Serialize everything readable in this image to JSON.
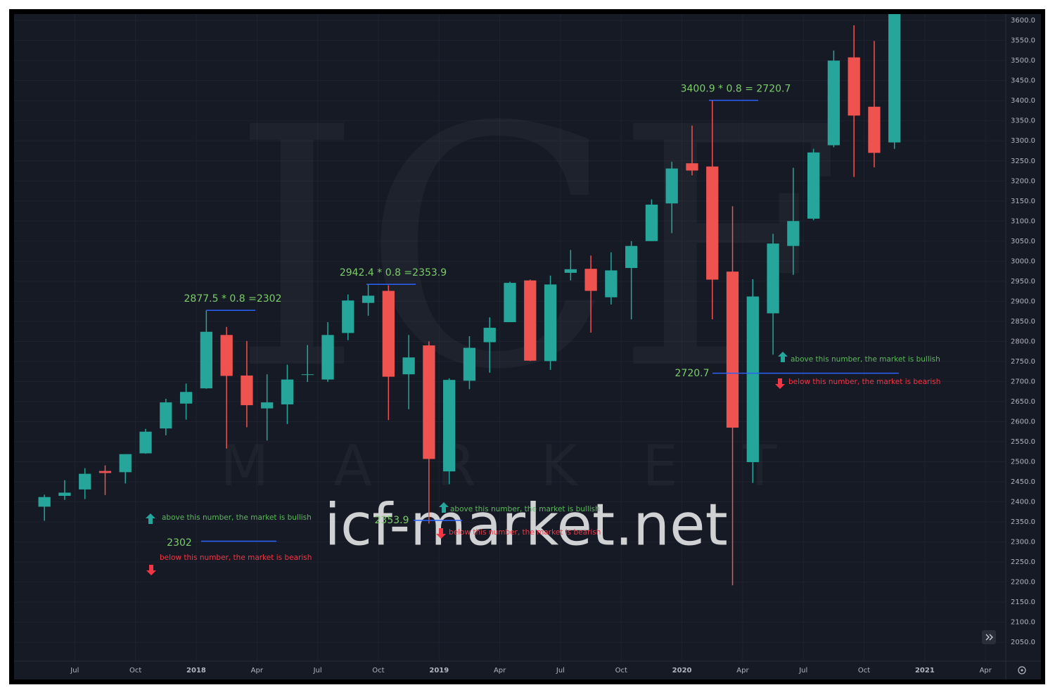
{
  "chart_data": {
    "type": "candlestick",
    "x": [
      "2017-05",
      "2017-06",
      "2017-07",
      "2017-08",
      "2017-09",
      "2017-10",
      "2017-11",
      "2017-12",
      "2018-01",
      "2018-02",
      "2018-03",
      "2018-04",
      "2018-05",
      "2018-06",
      "2018-07",
      "2018-08",
      "2018-09",
      "2018-10",
      "2018-11",
      "2018-12",
      "2019-01",
      "2019-02",
      "2019-03",
      "2019-04",
      "2019-05",
      "2019-06",
      "2019-07",
      "2019-08",
      "2019-09",
      "2019-10",
      "2019-11",
      "2019-12",
      "2020-01",
      "2020-02",
      "2020-03",
      "2020-04",
      "2020-05",
      "2020-06",
      "2020-07",
      "2020-08",
      "2020-09",
      "2020-10",
      "2020-11"
    ],
    "open": [
      2388,
      2415,
      2431,
      2477,
      2474,
      2521,
      2583,
      2645,
      2683,
      2816,
      2715,
      2633,
      2643,
      2718,
      2705,
      2821,
      2896,
      2926,
      2718,
      2790,
      2476,
      2702,
      2798,
      2848,
      2952,
      2751,
      2971,
      2981,
      2910,
      2983,
      3050,
      3144,
      3244,
      3236,
      2974,
      2499,
      2870,
      3038,
      3106,
      3289,
      3508,
      3385,
      3296
    ],
    "high": [
      2418,
      2454,
      2484,
      2491,
      2519,
      2582,
      2657,
      2695,
      2877.5,
      2836,
      2801,
      2718,
      2742,
      2791,
      2848,
      2917,
      2942.4,
      2940,
      2816,
      2800,
      2708,
      2813,
      2860,
      2949,
      2954,
      2964,
      3028,
      3014,
      3022,
      3050,
      3154,
      3248,
      3338,
      3400.9,
      3137,
      2955,
      3068,
      3233,
      3280,
      3525,
      3588,
      3549,
      3646
    ],
    "low": [
      2353,
      2405,
      2407,
      2417,
      2446,
      2520,
      2566,
      2605,
      2682,
      2533,
      2586,
      2553,
      2594,
      2699,
      2699,
      2803,
      2864,
      2604,
      2631,
      2346,
      2444,
      2681,
      2722,
      2848,
      2751,
      2729,
      2952,
      2822,
      2892,
      2855,
      3050,
      3070,
      3214,
      2855,
      2192,
      2447,
      2767,
      2966,
      3102,
      3284,
      3210,
      3234,
      3280
    ],
    "close": [
      2412,
      2423,
      2470,
      2472,
      2519,
      2575,
      2648,
      2674,
      2824,
      2714,
      2641,
      2648,
      2705,
      2718,
      2816,
      2902,
      2914,
      2712,
      2760,
      2507,
      2704,
      2784,
      2834,
      2946,
      2752,
      2942,
      2980,
      2926,
      2977,
      3038,
      3141,
      3231,
      3226,
      2954,
      2585,
      2912,
      3044,
      3100,
      3271,
      3500,
      3363,
      3270,
      3622
    ],
    "up_color": "#26a69a",
    "down_color": "#ef5350",
    "xlim": [
      "2017-04",
      "2021-05"
    ],
    "xticks": [
      {
        "value": "2017-07",
        "label": "Jul"
      },
      {
        "value": "2017-10",
        "label": "Oct"
      },
      {
        "value": "2018-01",
        "label": "2018"
      },
      {
        "value": "2018-04",
        "label": "Apr"
      },
      {
        "value": "2018-07",
        "label": "Jul"
      },
      {
        "value": "2018-10",
        "label": "Oct"
      },
      {
        "value": "2019-01",
        "label": "2019"
      },
      {
        "value": "2019-04",
        "label": "Apr"
      },
      {
        "value": "2019-07",
        "label": "Jul"
      },
      {
        "value": "2019-10",
        "label": "Oct"
      },
      {
        "value": "2020-01",
        "label": "2020"
      },
      {
        "value": "2020-04",
        "label": "Apr"
      },
      {
        "value": "2020-07",
        "label": "Jul"
      },
      {
        "value": "2020-10",
        "label": "Oct"
      },
      {
        "value": "2021-01",
        "label": "2021"
      },
      {
        "value": "2021-04",
        "label": "Apr"
      }
    ],
    "ylim": [
      2003,
      3616
    ],
    "yticks": [
      {
        "value": 2050,
        "label": "2050.0"
      },
      {
        "value": 2100,
        "label": "2100.0"
      },
      {
        "value": 2150,
        "label": "2150.0"
      },
      {
        "value": 2200,
        "label": "2200.0"
      },
      {
        "value": 2250,
        "label": "2250.0"
      },
      {
        "value": 2300,
        "label": "2300.0"
      },
      {
        "value": 2350,
        "label": "2350.0"
      },
      {
        "value": 2400,
        "label": "2400.0"
      },
      {
        "value": 2450,
        "label": "2450.0"
      },
      {
        "value": 2500,
        "label": "2500.0"
      },
      {
        "value": 2550,
        "label": "2550.0"
      },
      {
        "value": 2600,
        "label": "2600.0"
      },
      {
        "value": 2650,
        "label": "2650.0"
      },
      {
        "value": 2700,
        "label": "2700.0"
      },
      {
        "value": 2750,
        "label": "2750.0"
      },
      {
        "value": 2800,
        "label": "2800.0"
      },
      {
        "value": 2850,
        "label": "2850.0"
      },
      {
        "value": 2900,
        "label": "2900.0"
      },
      {
        "value": 2950,
        "label": "2950.0"
      },
      {
        "value": 3000,
        "label": "3000.0"
      },
      {
        "value": 3050,
        "label": "3050.0"
      },
      {
        "value": 3100,
        "label": "3100.0"
      },
      {
        "value": 3150,
        "label": "3150.0"
      },
      {
        "value": 3200,
        "label": "3200.0"
      },
      {
        "value": 3250,
        "label": "3250.0"
      },
      {
        "value": 3300,
        "label": "3300.0"
      },
      {
        "value": 3350,
        "label": "3350.0"
      },
      {
        "value": 3400,
        "label": "3400.0"
      },
      {
        "value": 3450,
        "label": "3450.0"
      },
      {
        "value": 3500,
        "label": "3500.0"
      },
      {
        "value": 3550,
        "label": "3550.0"
      },
      {
        "value": 3600,
        "label": "3600.0"
      }
    ],
    "grid": true,
    "peaks": [
      {
        "text": "2877.5 * 0.8 =2302",
        "value": 2877.5
      },
      {
        "text": "2942.4 * 0.8 =2353.9",
        "value": 2942.4
      },
      {
        "text": "3400.9 * 0.8 = 2720.7",
        "value": 3400.9
      }
    ],
    "levels": [
      {
        "value": 2302,
        "bullish": "above this number, the market is bullish",
        "bearish": "below this number, the market is bearish"
      },
      {
        "value": 2353.9,
        "bullish": "above this number, the market is bullish",
        "bearish": "below this number, the market is bearish"
      },
      {
        "value": 2720.7,
        "bullish": "above this number, the market is bullish",
        "bearish": "below this number, the market is bearish"
      }
    ],
    "watermark": {
      "logo": "ICF",
      "word": "MARKET",
      "site": "icf-market.net"
    }
  }
}
